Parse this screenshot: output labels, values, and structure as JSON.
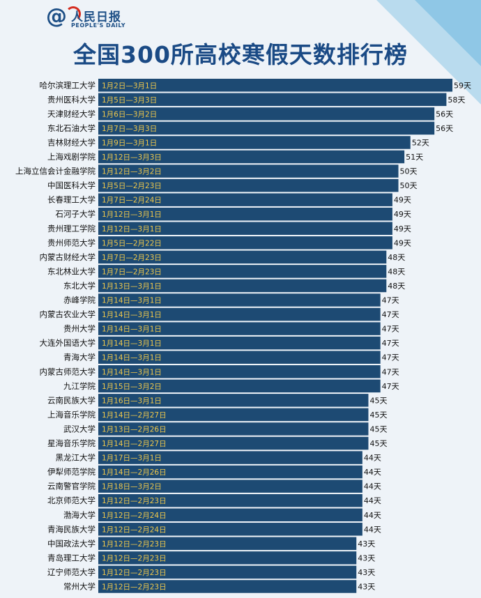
{
  "header": {
    "logo_name": "人民日报",
    "logo_sub": "PEOPLE'S DAILY",
    "title": "全国300所高校寒假天数排行榜"
  },
  "colors": {
    "bar": "#1d4a73",
    "bar_text": "#f1c94b",
    "label": "#111111",
    "background": "#eef3f8",
    "accent": "#d52b1e"
  },
  "chart_data": {
    "type": "bar",
    "orientation": "horizontal",
    "title": "全国300所高校寒假天数排行榜",
    "value_suffix": "天",
    "xlim": [
      0,
      59
    ],
    "grid": false,
    "legend": "none",
    "categories": [
      "哈尔滨理工大学",
      "贵州医科大学",
      "天津财经大学",
      "东北石油大学",
      "吉林财经大学",
      "上海戏剧学院",
      "上海立信会计金融学院",
      "中国医科大学",
      "长春理工大学",
      "石河子大学",
      "贵州理工学院",
      "贵州师范大学",
      "内蒙古财经大学",
      "东北林业大学",
      "东北大学",
      "赤峰学院",
      "内蒙古农业大学",
      "贵州大学",
      "大连外国语大学",
      "青海大学",
      "内蒙古师范大学",
      "九江学院",
      "云南民族大学",
      "上海音乐学院",
      "武汉大学",
      "星海音乐学院",
      "黑龙江大学",
      "伊犁师范学院",
      "云南警官学院",
      "北京师范大学",
      "渤海大学",
      "青海民族大学",
      "中国政法大学",
      "青岛理工大学",
      "辽宁师范大学",
      "常州大学"
    ],
    "values": [
      59,
      58,
      56,
      56,
      52,
      51,
      50,
      50,
      49,
      49,
      49,
      49,
      48,
      48,
      48,
      47,
      47,
      47,
      47,
      47,
      47,
      47,
      45,
      45,
      45,
      45,
      44,
      44,
      44,
      44,
      44,
      44,
      43,
      43,
      43,
      43
    ],
    "value_labels": [
      "59天",
      "58天",
      "56天",
      "56天",
      "52天",
      "51天",
      "50天",
      "50天",
      "49天",
      "49天",
      "49天",
      "49天",
      "48天",
      "48天",
      "48天",
      "47天",
      "47天",
      "47天",
      "47天",
      "47天",
      "47天",
      "47天",
      "45天",
      "45天",
      "45天",
      "45天",
      "44天",
      "44天",
      "44天",
      "44天",
      "44天",
      "44天",
      "43天",
      "43天",
      "43天",
      "43天"
    ],
    "date_ranges": [
      "1月2日—3月1日",
      "1月5日—3月3日",
      "1月6日—3月2日",
      "1月7日—3月3日",
      "1月9日—3月1日",
      "1月12日—3月3日",
      "1月12日—3月2日",
      "1月5日—2月23日",
      "1月7日—2月24日",
      "1月12日—3月1日",
      "1月12日—3月1日",
      "1月5日—2月22日",
      "1月7日—2月23日",
      "1月7日—2月23日",
      "1月13日—3月1日",
      "1月14日—3月1日",
      "1月14日—3月1日",
      "1月14日—3月1日",
      "1月14日—3月1日",
      "1月14日—3月1日",
      "1月14日—3月1日",
      "1月15日—3月2日",
      "1月16日—3月1日",
      "1月14日—2月27日",
      "1月13日—2月26日",
      "1月14日—2月27日",
      "1月17日—3月1日",
      "1月14日—2月26日",
      "1月18日—3月2日",
      "1月12日—2月23日",
      "1月12日—2月24日",
      "1月12日—2月24日",
      "1月12日—2月23日",
      "1月12日—2月23日",
      "1月12日—2月23日",
      "1月12日—2月23日"
    ]
  }
}
